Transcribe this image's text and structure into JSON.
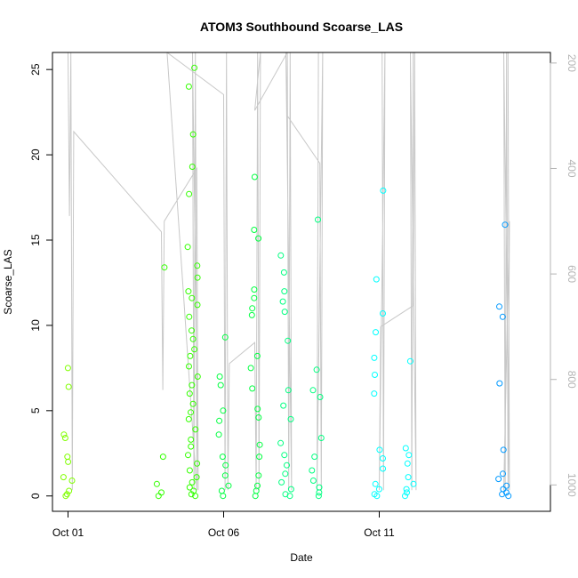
{
  "chart_data": {
    "type": "scatter",
    "title": "ATOM3 Southbound Scoarse_LAS",
    "xlabel": "Date",
    "ylabel": "Scoarse_LAS",
    "xlim": [
      "2018-09-30T12:00",
      "2018-10-16T12:00"
    ],
    "ylim": [
      -0.9,
      26
    ],
    "x_ticks": [
      {
        "label": "Oct 01",
        "date": "2018-10-01"
      },
      {
        "label": "Oct 06",
        "date": "2018-10-06"
      },
      {
        "label": "Oct 11",
        "date": "2018-10-11"
      }
    ],
    "y_ticks": [
      0,
      5,
      10,
      15,
      20,
      25
    ],
    "secondary_axis": {
      "side": "right",
      "reversed": true,
      "range": [
        1050,
        180
      ],
      "ticks": [
        200,
        400,
        600,
        800,
        1000
      ],
      "color": "#b4b4b4"
    },
    "series": [
      {
        "color": "#80ff00",
        "points": [
          [
            "2018-10-01T00:00",
            7.5
          ],
          [
            "2018-10-01T00:00",
            6.4
          ],
          [
            "2018-10-01T00:00",
            3.6
          ],
          [
            "2018-10-01T00:00",
            3.4
          ],
          [
            "2018-10-01T00:00",
            2.3
          ],
          [
            "2018-10-01T00:00",
            2.0
          ],
          [
            "2018-10-01T00:00",
            1.1
          ],
          [
            "2018-10-01T00:00",
            0.9
          ],
          [
            "2018-10-01T00:00",
            0.3
          ],
          [
            "2018-10-01T00:00",
            0.1
          ],
          [
            "2018-10-01T00:00",
            0.0
          ]
        ]
      },
      {
        "color": "#33ff00",
        "points": [
          [
            "2018-10-04T00:00",
            13.4
          ],
          [
            "2018-10-04T00:00",
            2.3
          ],
          [
            "2018-10-04T00:00",
            0.7
          ],
          [
            "2018-10-04T00:00",
            0.2
          ],
          [
            "2018-10-04T00:00",
            0.0
          ],
          [
            "2018-10-05T00:00",
            25.1
          ],
          [
            "2018-10-05T00:00",
            24.0
          ],
          [
            "2018-10-05T00:00",
            21.2
          ],
          [
            "2018-10-05T00:00",
            19.3
          ],
          [
            "2018-10-05T00:00",
            17.7
          ],
          [
            "2018-10-05T00:00",
            14.6
          ],
          [
            "2018-10-05T00:00",
            13.5
          ],
          [
            "2018-10-05T00:00",
            12.8
          ],
          [
            "2018-10-05T00:00",
            12.0
          ],
          [
            "2018-10-05T00:00",
            11.6
          ],
          [
            "2018-10-05T00:00",
            11.2
          ],
          [
            "2018-10-05T00:00",
            10.5
          ],
          [
            "2018-10-05T00:00",
            9.7
          ],
          [
            "2018-10-05T00:00",
            9.2
          ],
          [
            "2018-10-05T00:00",
            8.6
          ],
          [
            "2018-10-05T00:00",
            8.2
          ],
          [
            "2018-10-05T00:00",
            7.6
          ],
          [
            "2018-10-05T00:00",
            7.0
          ],
          [
            "2018-10-05T00:00",
            6.5
          ],
          [
            "2018-10-05T00:00",
            6.0
          ],
          [
            "2018-10-05T00:00",
            5.4
          ],
          [
            "2018-10-05T00:00",
            4.9
          ],
          [
            "2018-10-05T00:00",
            4.5
          ],
          [
            "2018-10-05T00:00",
            3.9
          ],
          [
            "2018-10-05T00:00",
            3.3
          ],
          [
            "2018-10-05T00:00",
            2.9
          ],
          [
            "2018-10-05T00:00",
            2.4
          ],
          [
            "2018-10-05T00:00",
            1.9
          ],
          [
            "2018-10-05T00:00",
            1.5
          ],
          [
            "2018-10-05T00:00",
            1.1
          ],
          [
            "2018-10-05T00:00",
            0.8
          ],
          [
            "2018-10-05T00:00",
            0.5
          ],
          [
            "2018-10-05T00:00",
            0.3
          ],
          [
            "2018-10-05T00:00",
            0.1
          ],
          [
            "2018-10-05T00:00",
            0.0
          ]
        ]
      },
      {
        "color": "#00ff40",
        "points": [
          [
            "2018-10-06T00:00",
            9.3
          ],
          [
            "2018-10-06T00:00",
            7.0
          ],
          [
            "2018-10-06T00:00",
            6.5
          ],
          [
            "2018-10-06T00:00",
            5.0
          ],
          [
            "2018-10-06T00:00",
            4.4
          ],
          [
            "2018-10-06T00:00",
            3.6
          ],
          [
            "2018-10-06T00:00",
            2.3
          ],
          [
            "2018-10-06T00:00",
            1.8
          ],
          [
            "2018-10-06T00:00",
            1.2
          ],
          [
            "2018-10-06T00:00",
            0.6
          ],
          [
            "2018-10-06T00:00",
            0.3
          ],
          [
            "2018-10-06T00:00",
            0.0
          ],
          [
            "2018-10-07T00:00",
            18.7
          ],
          [
            "2018-10-07T00:00",
            15.6
          ],
          [
            "2018-10-07T00:00",
            15.1
          ],
          [
            "2018-10-07T00:00",
            12.1
          ],
          [
            "2018-10-07T00:00",
            11.6
          ],
          [
            "2018-10-07T00:00",
            11.0
          ],
          [
            "2018-10-07T00:00",
            10.6
          ],
          [
            "2018-10-07T00:00",
            8.2
          ],
          [
            "2018-10-07T00:00",
            7.5
          ],
          [
            "2018-10-07T00:00",
            6.3
          ],
          [
            "2018-10-07T00:00",
            5.1
          ],
          [
            "2018-10-07T00:00",
            4.6
          ],
          [
            "2018-10-07T00:00",
            3.0
          ],
          [
            "2018-10-07T00:00",
            2.3
          ],
          [
            "2018-10-07T00:00",
            1.2
          ],
          [
            "2018-10-07T00:00",
            0.6
          ],
          [
            "2018-10-07T00:00",
            0.3
          ],
          [
            "2018-10-07T00:00",
            0.0
          ]
        ]
      },
      {
        "color": "#00ff80",
        "points": [
          [
            "2018-10-08T00:00",
            14.1
          ],
          [
            "2018-10-08T00:00",
            13.1
          ],
          [
            "2018-10-08T00:00",
            12.0
          ],
          [
            "2018-10-08T00:00",
            11.4
          ],
          [
            "2018-10-08T00:00",
            10.8
          ],
          [
            "2018-10-08T00:00",
            9.1
          ],
          [
            "2018-10-08T00:00",
            6.2
          ],
          [
            "2018-10-08T00:00",
            5.3
          ],
          [
            "2018-10-08T00:00",
            4.5
          ],
          [
            "2018-10-08T00:00",
            3.1
          ],
          [
            "2018-10-08T00:00",
            2.4
          ],
          [
            "2018-10-08T00:00",
            1.8
          ],
          [
            "2018-10-08T00:00",
            1.3
          ],
          [
            "2018-10-08T00:00",
            0.8
          ],
          [
            "2018-10-08T00:00",
            0.4
          ],
          [
            "2018-10-08T00:00",
            0.1
          ],
          [
            "2018-10-08T00:00",
            0.0
          ],
          [
            "2018-10-09T00:00",
            16.2
          ],
          [
            "2018-10-09T00:00",
            7.4
          ],
          [
            "2018-10-09T00:00",
            6.2
          ],
          [
            "2018-10-09T00:00",
            5.8
          ],
          [
            "2018-10-09T00:00",
            3.4
          ],
          [
            "2018-10-09T00:00",
            2.3
          ],
          [
            "2018-10-09T00:00",
            1.5
          ],
          [
            "2018-10-09T00:00",
            0.9
          ],
          [
            "2018-10-09T00:00",
            0.5
          ],
          [
            "2018-10-09T00:00",
            0.2
          ],
          [
            "2018-10-09T00:00",
            0.0
          ]
        ]
      },
      {
        "color": "#00ffff",
        "points": [
          [
            "2018-10-11T00:00",
            17.9
          ],
          [
            "2018-10-11T00:00",
            12.7
          ],
          [
            "2018-10-11T00:00",
            10.7
          ],
          [
            "2018-10-11T00:00",
            9.6
          ],
          [
            "2018-10-11T00:00",
            8.1
          ],
          [
            "2018-10-11T00:00",
            7.1
          ],
          [
            "2018-10-11T00:00",
            6.0
          ],
          [
            "2018-10-11T00:00",
            2.7
          ],
          [
            "2018-10-11T00:00",
            2.2
          ],
          [
            "2018-10-11T00:00",
            1.6
          ],
          [
            "2018-10-11T00:00",
            0.7
          ],
          [
            "2018-10-11T00:00",
            0.4
          ],
          [
            "2018-10-11T00:00",
            0.1
          ],
          [
            "2018-10-11T00:00",
            0.0
          ],
          [
            "2018-10-12T00:00",
            7.9
          ],
          [
            "2018-10-12T00:00",
            2.8
          ],
          [
            "2018-10-12T00:00",
            2.4
          ],
          [
            "2018-10-12T00:00",
            1.9
          ],
          [
            "2018-10-12T00:00",
            1.1
          ],
          [
            "2018-10-12T00:00",
            0.7
          ],
          [
            "2018-10-12T00:00",
            0.4
          ],
          [
            "2018-10-12T00:00",
            0.2
          ],
          [
            "2018-10-12T00:00",
            0.0
          ]
        ]
      },
      {
        "color": "#0099ff",
        "points": [
          [
            "2018-10-15T00:00",
            15.9
          ],
          [
            "2018-10-15T00:00",
            11.1
          ],
          [
            "2018-10-15T00:00",
            10.5
          ],
          [
            "2018-10-15T00:00",
            6.6
          ],
          [
            "2018-10-15T00:00",
            2.7
          ],
          [
            "2018-10-15T00:00",
            1.3
          ],
          [
            "2018-10-15T00:00",
            1.0
          ],
          [
            "2018-10-15T00:00",
            0.6
          ],
          [
            "2018-10-15T00:00",
            0.4
          ],
          [
            "2018-10-15T00:00",
            0.2
          ],
          [
            "2018-10-15T00:00",
            0.1
          ],
          [
            "2018-10-15T00:00",
            0.0
          ]
        ]
      }
    ],
    "depth_trace": {
      "color": "#c8c8c8",
      "points": [
        [
          "2018-10-01T00:00",
          180
        ],
        [
          "2018-10-01T00:00",
          490
        ],
        [
          "2018-10-01T00:00",
          180
        ],
        [
          "2018-10-01T00:00",
          1010
        ],
        [
          "2018-10-01T00:00",
          330
        ],
        [
          "2018-10-04T00:00",
          520
        ],
        [
          "2018-10-04T00:00",
          820
        ],
        [
          "2018-10-04T00:00",
          500
        ],
        [
          "2018-10-05T00:00",
          400
        ],
        [
          "2018-10-05T00:00",
          1010
        ],
        [
          "2018-10-05T00:00",
          180
        ],
        [
          "2018-10-05T00:00",
          1010
        ],
        [
          "2018-10-05T00:00",
          180
        ],
        [
          "2018-10-05T00:00",
          1010
        ],
        [
          "2018-10-04T00:00",
          180
        ],
        [
          "2018-10-06T00:00",
          260
        ],
        [
          "2018-10-06T00:00",
          1010
        ],
        [
          "2018-10-06T00:00",
          180
        ],
        [
          "2018-10-06T00:00",
          1010
        ],
        [
          "2018-10-06T00:00",
          770
        ],
        [
          "2018-10-07T00:00",
          730
        ],
        [
          "2018-10-07T00:00",
          1010
        ],
        [
          "2018-10-07T00:00",
          180
        ],
        [
          "2018-10-07T00:00",
          1010
        ],
        [
          "2018-10-07T00:00",
          180
        ],
        [
          "2018-10-07T00:00",
          290
        ],
        [
          "2018-10-08T00:00",
          180
        ],
        [
          "2018-10-08T00:00",
          1010
        ],
        [
          "2018-10-08T00:00",
          180
        ],
        [
          "2018-10-08T00:00",
          1010
        ],
        [
          "2018-10-08T00:00",
          180
        ],
        [
          "2018-10-08T00:00",
          300
        ],
        [
          "2018-10-09T00:00",
          390
        ],
        [
          "2018-10-09T00:00",
          1010
        ],
        [
          "2018-10-09T00:00",
          180
        ],
        [
          "2018-10-09T00:00",
          1010
        ],
        [
          "2018-10-09T00:00",
          180
        ],
        [
          "2018-10-11T00:00",
          180
        ],
        [
          "2018-10-11T00:00",
          1010
        ],
        [
          "2018-10-11T00:00",
          180
        ],
        [
          "2018-10-11T00:00",
          1010
        ],
        [
          "2018-10-11T00:00",
          700
        ],
        [
          "2018-10-12T00:00",
          660
        ],
        [
          "2018-10-12T00:00",
          180
        ],
        [
          "2018-10-12T00:00",
          1010
        ],
        [
          "2018-10-12T00:00",
          180
        ],
        [
          "2018-10-12T00:00",
          1010
        ],
        [
          "2018-10-12T00:00",
          180
        ],
        [
          "2018-10-15T00:00",
          180
        ],
        [
          "2018-10-15T00:00",
          1010
        ],
        [
          "2018-10-15T00:00",
          180
        ],
        [
          "2018-10-15T00:00",
          1010
        ],
        [
          "2018-10-15T00:00",
          180
        ],
        [
          "2018-10-15T00:00",
          1010
        ],
        [
          "2018-10-15T00:00",
          500
        ],
        [
          "2018-10-15T00:00",
          1010
        ]
      ]
    },
    "grid": false,
    "legend": "none"
  }
}
